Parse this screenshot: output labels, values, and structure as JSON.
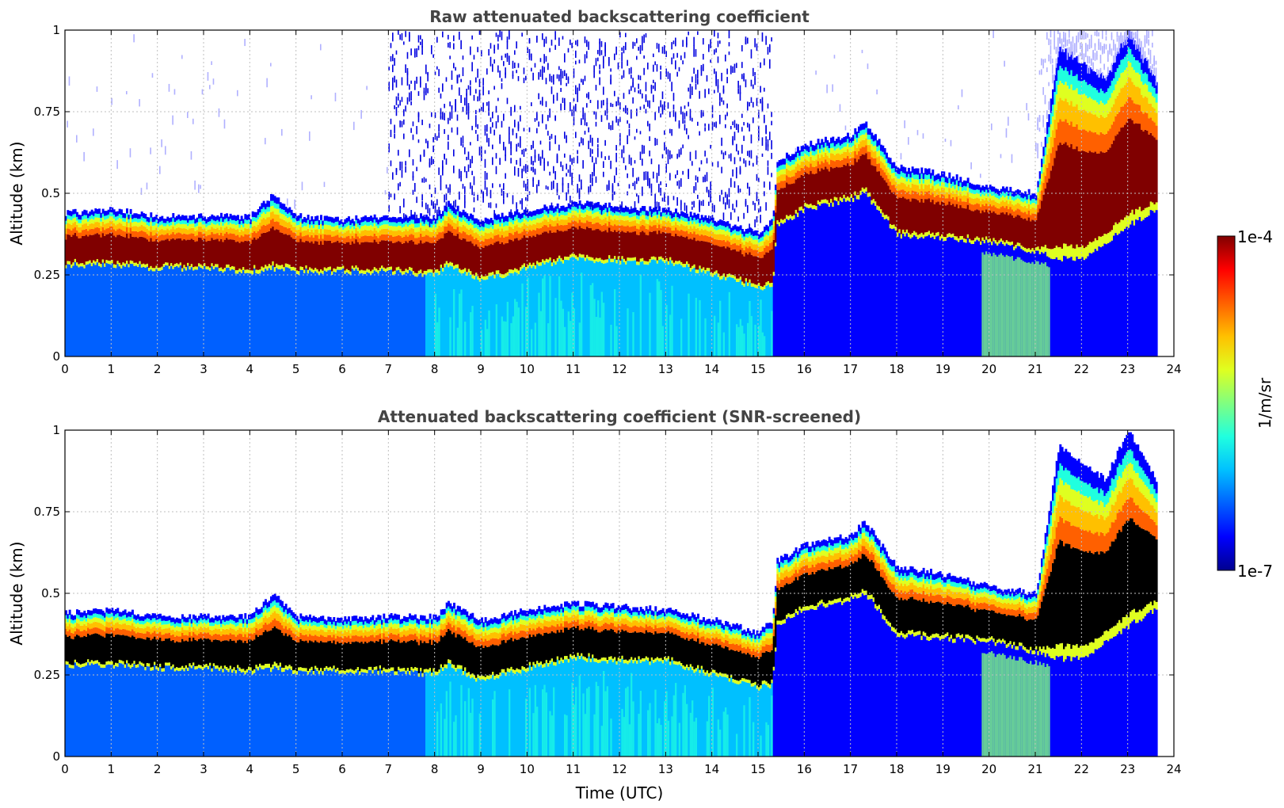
{
  "colors": {
    "jet": [
      "#00008f",
      "#0000ff",
      "#0060ff",
      "#00c0ff",
      "#20ffdf",
      "#80ff80",
      "#dfff20",
      "#ffc000",
      "#ff6000",
      "#ff0000",
      "#800000"
    ],
    "screened_saturation": "#000000",
    "grid": "#bfbfbf"
  },
  "chart_data": [
    {
      "id": "raw",
      "type": "heatmap",
      "title": "Raw attenuated backscattering coefficient",
      "xlabel": "",
      "ylabel": "Altitude (km)",
      "xlim": [
        0,
        24
      ],
      "ylim": [
        0,
        1
      ],
      "xticks": [
        "0",
        "1",
        "2",
        "3",
        "4",
        "5",
        "6",
        "7",
        "8",
        "9",
        "10",
        "11",
        "12",
        "13",
        "14",
        "15",
        "16",
        "17",
        "18",
        "19",
        "20",
        "21",
        "22",
        "23",
        "24"
      ],
      "yticks": [
        "0",
        "0.25",
        "0.5",
        "0.75",
        "1"
      ],
      "grid": true,
      "data_end_hour": 23.6,
      "cloud_layer": {
        "description": "cloud base and top altitude (km) vs time (UTC)",
        "time": [
          0,
          1,
          2,
          3,
          4,
          4.5,
          5,
          6,
          7,
          8,
          8.3,
          9,
          10,
          11,
          12,
          13,
          14,
          15,
          15.3,
          15.4,
          16,
          17,
          17.3,
          18,
          19,
          20,
          21,
          21.5,
          22,
          22.5,
          23,
          23.6
        ],
        "base_km": [
          0.28,
          0.28,
          0.27,
          0.27,
          0.26,
          0.27,
          0.26,
          0.26,
          0.26,
          0.25,
          0.28,
          0.23,
          0.27,
          0.3,
          0.29,
          0.29,
          0.25,
          0.21,
          0.22,
          0.4,
          0.45,
          0.48,
          0.5,
          0.37,
          0.36,
          0.35,
          0.32,
          0.3,
          0.3,
          0.35,
          0.4,
          0.45
        ],
        "top_km": [
          0.44,
          0.45,
          0.43,
          0.43,
          0.43,
          0.5,
          0.43,
          0.42,
          0.43,
          0.43,
          0.47,
          0.42,
          0.45,
          0.47,
          0.46,
          0.45,
          0.42,
          0.38,
          0.42,
          0.6,
          0.65,
          0.68,
          0.72,
          0.58,
          0.56,
          0.52,
          0.5,
          0.95,
          0.9,
          0.85,
          1.0,
          0.85
        ]
      },
      "noise_region_hours": [
        7,
        15.3
      ]
    },
    {
      "id": "screened",
      "type": "heatmap",
      "title": "Attenuated backscattering coefficient (SNR-screened)",
      "xlabel": "Time (UTC)",
      "ylabel": "Altitude (km)",
      "xlim": [
        0,
        24
      ],
      "ylim": [
        0,
        1
      ],
      "xticks": [
        "0",
        "1",
        "2",
        "3",
        "4",
        "5",
        "6",
        "7",
        "8",
        "9",
        "10",
        "11",
        "12",
        "13",
        "14",
        "15",
        "16",
        "17",
        "18",
        "19",
        "20",
        "21",
        "22",
        "23",
        "24"
      ],
      "yticks": [
        "0",
        "0.25",
        "0.5",
        "0.75",
        "1"
      ],
      "grid": true,
      "data_end_hour": 23.6,
      "saturated_color": "black"
    }
  ],
  "colorbar": {
    "label": "1/m/sr",
    "max_label": "1e-4",
    "min_label": "1e-7",
    "scale": "log",
    "range": [
      1e-07,
      0.0001
    ]
  }
}
